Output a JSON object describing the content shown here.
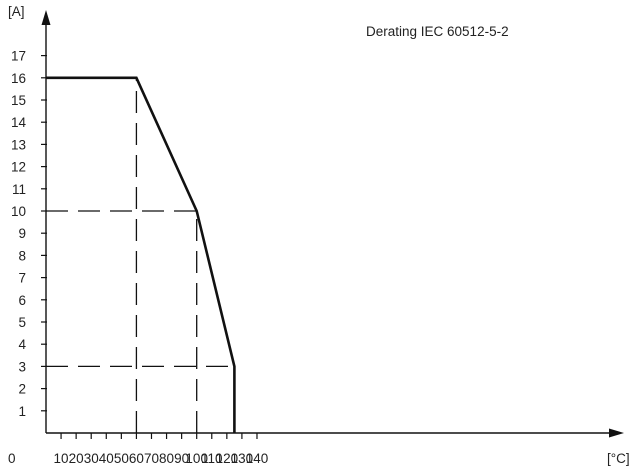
{
  "chart_data": {
    "type": "line",
    "title": "Derating IEC 60512-5-2",
    "xlabel": "[°C]",
    "ylabel": "[A]",
    "origin_label": "0",
    "xlim": [
      0,
      150
    ],
    "ylim": [
      0,
      18
    ],
    "x_ticks": [
      10,
      20,
      30,
      40,
      50,
      60,
      70,
      80,
      90,
      100,
      110,
      120,
      130,
      140
    ],
    "y_ticks": [
      1,
      2,
      3,
      4,
      5,
      6,
      7,
      8,
      9,
      10,
      11,
      12,
      13,
      14,
      15,
      16,
      17
    ],
    "series": [
      {
        "x": [
          0,
          60,
          100,
          125,
          125
        ],
        "y": [
          16,
          16,
          10,
          3,
          0
        ]
      }
    ],
    "reference_lines": [
      {
        "axis": "x",
        "value": 60,
        "from": 0,
        "to": 16
      },
      {
        "axis": "x",
        "value": 100,
        "from": 0,
        "to": 10
      },
      {
        "axis": "y",
        "value": 10,
        "from": 0,
        "to": 100
      },
      {
        "axis": "y",
        "value": 3,
        "from": 0,
        "to": 125
      }
    ],
    "grid": false,
    "colors": {
      "line": "#111111",
      "axis": "#111111",
      "reference": "#111111"
    }
  }
}
